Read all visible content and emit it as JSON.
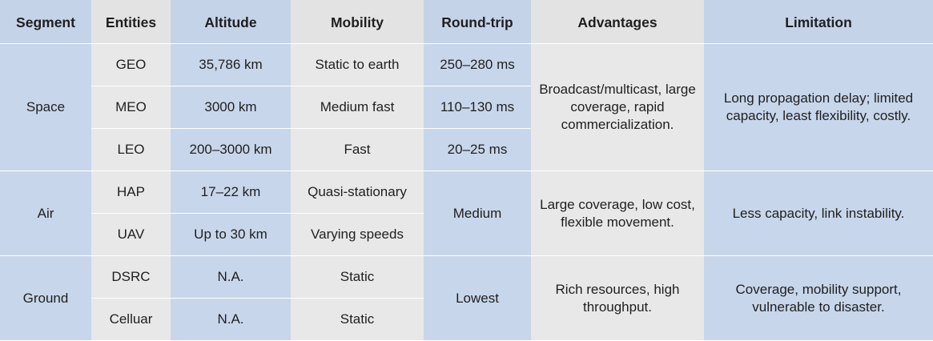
{
  "headers": {
    "segment": "Segment",
    "entities": "Entities",
    "altitude": "Altitude",
    "mobility": "Mobility",
    "round_trip": "Round-trip",
    "advantages": "Advantages",
    "limitation": "Limitation"
  },
  "space": {
    "segment": "Space",
    "rows": [
      {
        "entity": "GEO",
        "altitude": "35,786 km",
        "mobility": "Static to earth",
        "round_trip": "250–280 ms"
      },
      {
        "entity": "MEO",
        "altitude": "3000 km",
        "mobility": "Medium fast",
        "round_trip": "110–130 ms"
      },
      {
        "entity": "LEO",
        "altitude": "200–3000 km",
        "mobility": "Fast",
        "round_trip": "20–25 ms"
      }
    ],
    "advantages": "Broadcast/multicast, large coverage, rapid commercialization.",
    "limitation": "Long propagation delay; limited capacity, least flexibility, costly."
  },
  "air": {
    "segment": "Air",
    "rows": [
      {
        "entity": "HAP",
        "altitude": "17–22 km",
        "mobility": "Quasi-stationary"
      },
      {
        "entity": "UAV",
        "altitude": "Up to 30 km",
        "mobility": "Varying speeds"
      }
    ],
    "round_trip": "Medium",
    "advantages": "Large coverage, low cost, flexible movement.",
    "limitation": "Less capacity, link instability."
  },
  "ground": {
    "segment": "Ground",
    "rows": [
      {
        "entity": "DSRC",
        "altitude": "N.A.",
        "mobility": "Static"
      },
      {
        "entity": "Celluar",
        "altitude": "N.A.",
        "mobility": "Static"
      }
    ],
    "round_trip": "Lowest",
    "advantages": "Rich resources, high throughput.",
    "limitation": "Coverage, mobility support, vulnerable to disaster."
  },
  "colors": {
    "blue_column": "#c8d6eb",
    "grey_column": "#e8e8e8",
    "divider": "#ffffff"
  }
}
